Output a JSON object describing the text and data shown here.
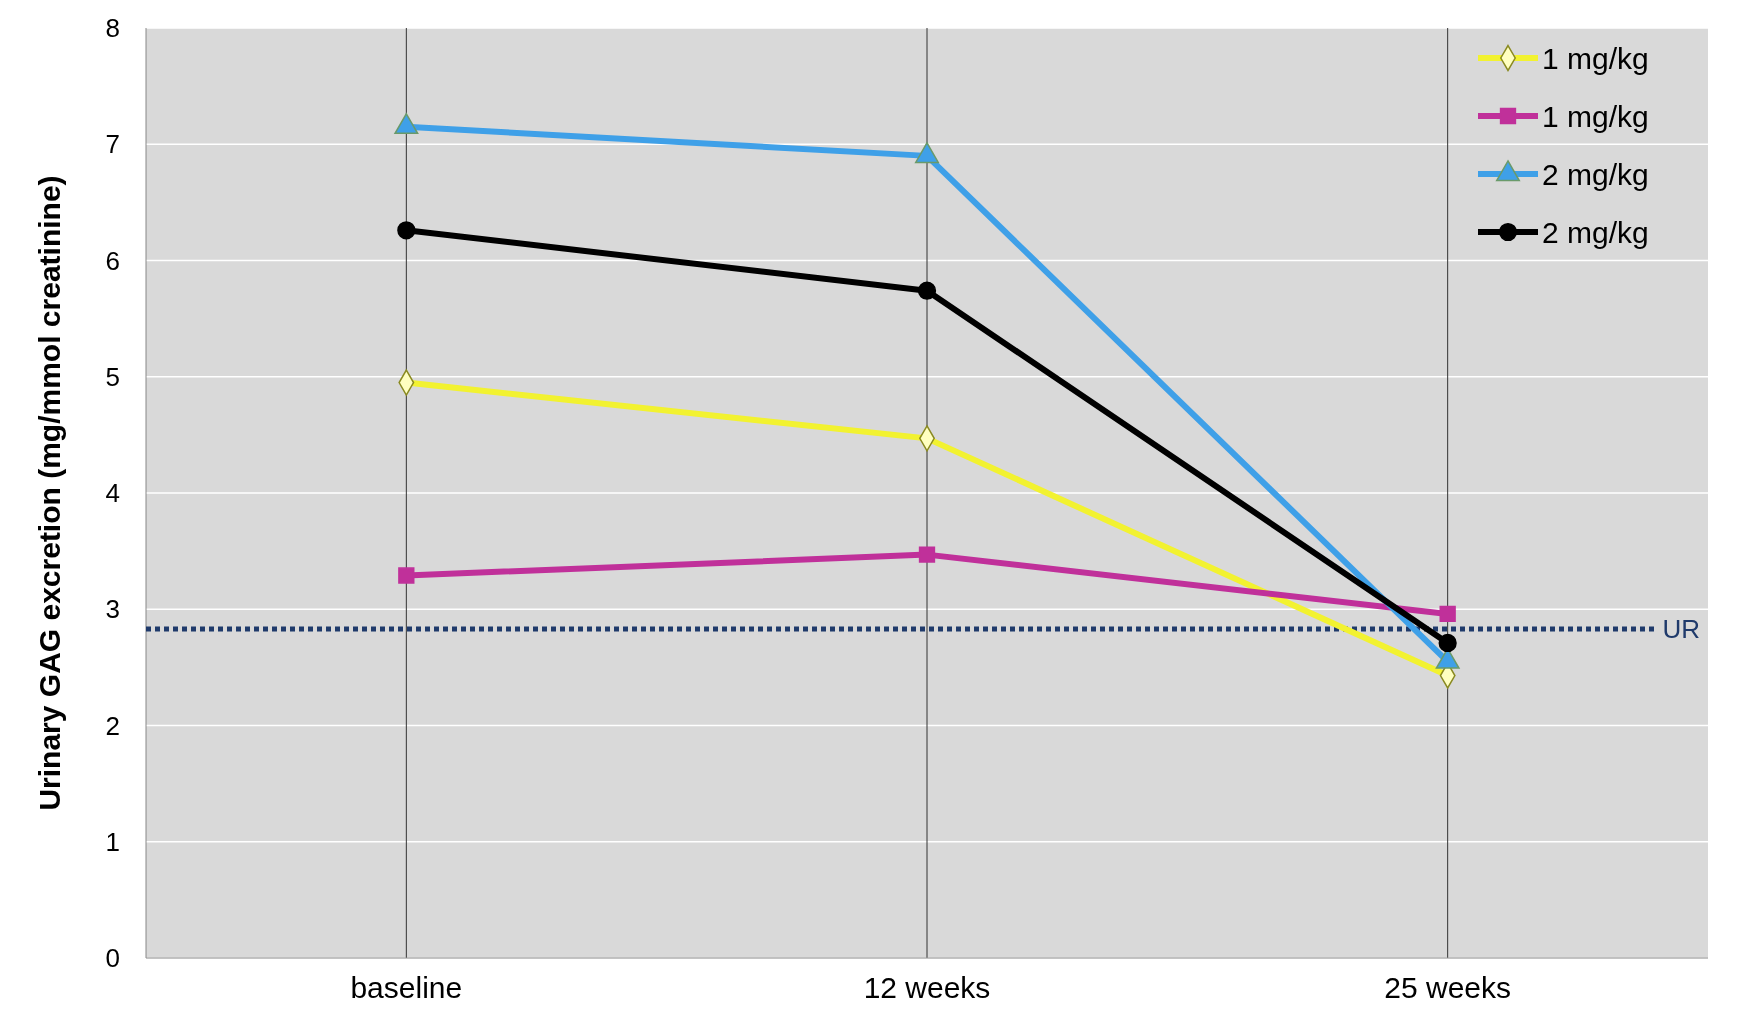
{
  "chart_data": {
    "type": "line",
    "ylabel": "Urinary GAG excretion (mg/mmol creatinine)",
    "categories": [
      "baseline",
      "12 weeks",
      "25 weeks"
    ],
    "ylim": [
      0,
      8
    ],
    "yticks": [
      0,
      1,
      2,
      3,
      4,
      5,
      6,
      7,
      8
    ],
    "grid": true,
    "legend": "top right",
    "series": [
      {
        "name": "1 mg/kg",
        "color": "#f2f230",
        "marker": "diamond",
        "values": [
          4.95,
          4.47,
          2.43
        ]
      },
      {
        "name": "1 mg/kg",
        "color": "#c0309a",
        "marker": "square",
        "values": [
          3.29,
          3.47,
          2.96
        ]
      },
      {
        "name": "2 mg/kg",
        "color": "#3fa0e8",
        "marker": "triangle",
        "values": [
          7.15,
          6.9,
          2.55
        ]
      },
      {
        "name": "2 mg/kg",
        "color": "#000000",
        "marker": "circle",
        "values": [
          6.26,
          5.74,
          2.71
        ]
      }
    ],
    "ref_lines": [
      {
        "axis": "y",
        "value": 2.83,
        "label": "UR",
        "color": "#1f3a6b",
        "line_style": "dotted"
      }
    ]
  }
}
